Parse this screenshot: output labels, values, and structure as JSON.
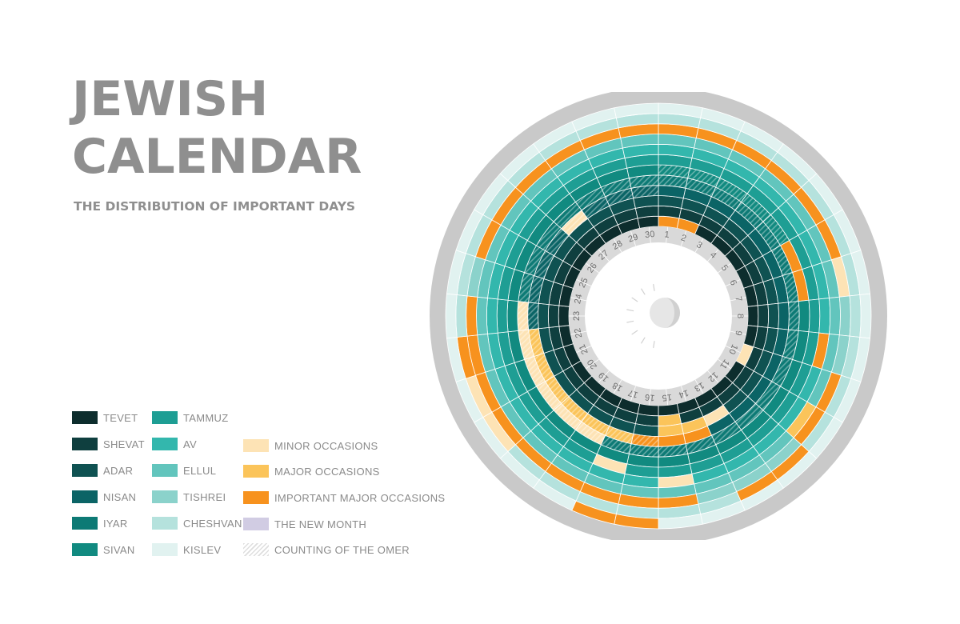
{
  "page": {
    "title_line1": "JEWISH",
    "title_line2": "CALENDAR",
    "subtitle": "THE DISTRIBUTION OF IMPORTANT DAYS"
  },
  "colors": {
    "background": "#ffffff",
    "outer_ring": "#c9c9c9",
    "day_ring": "#d9d9d9",
    "text_gray": "#8f8f8f",
    "months": {
      "TEVET": "#0d2d2d",
      "SHEVAT": "#0f3f3f",
      "ADAR": "#0f5252",
      "NISAN": "#0b6466",
      "IYAR": "#0d7a75",
      "SIVAN": "#118a80",
      "TAMMUZ": "#1e9e94",
      "AV": "#33b7ad",
      "ELLUL": "#62c5bd",
      "TISHREI": "#8bd2cb",
      "CHESHVAN": "#b5e2dd",
      "KISLEV": "#e1f2f0"
    },
    "occasions": {
      "minor": "#fde3b5",
      "major": "#fbc45a",
      "important": "#f7921e",
      "new_month": "#d1cce3"
    }
  },
  "legend": {
    "months": [
      {
        "label": "TEVET",
        "color": "#0d2d2d"
      },
      {
        "label": "SHEVAT",
        "color": "#0f3f3f"
      },
      {
        "label": "ADAR",
        "color": "#0f5252"
      },
      {
        "label": "NISAN",
        "color": "#0b6466"
      },
      {
        "label": "IYAR",
        "color": "#0d7a75"
      },
      {
        "label": "SIVAN",
        "color": "#118a80"
      },
      {
        "label": "TAMMUZ",
        "color": "#1e9e94"
      },
      {
        "label": "AV",
        "color": "#33b7ad"
      },
      {
        "label": "ELLUL",
        "color": "#62c5bd"
      },
      {
        "label": "TISHREI",
        "color": "#8bd2cb"
      },
      {
        "label": "CHESHVAN",
        "color": "#b5e2dd"
      },
      {
        "label": "KISLEV",
        "color": "#e1f2f0"
      }
    ],
    "occasions": [
      {
        "label": "MINOR OCCASIONS",
        "color": "#fde3b5"
      },
      {
        "label": "MAJOR OCCASIONS",
        "color": "#fbc45a"
      },
      {
        "label": "IMPORTANT MAJOR OCCASIONS",
        "color": "#f7921e"
      },
      {
        "label": "THE NEW MONTH",
        "color": "#d1cce3"
      },
      {
        "label": "COUNTING OF THE OMER",
        "pattern": "hatch"
      }
    ]
  },
  "chart_data": {
    "type": "heatmap",
    "form": "radial",
    "title": "JEWISH CALENDAR",
    "subtitle": "THE DISTRIBUTION OF IMPORTANT DAYS",
    "rings_inner_to_outer": [
      "TEVET",
      "SHEVAT",
      "ADAR",
      "NISAN",
      "IYAR",
      "SIVAN",
      "TAMMUZ",
      "AV",
      "ELLUL",
      "TISHREI",
      "CHESHVAN",
      "KISLEV"
    ],
    "days": [
      1,
      2,
      3,
      4,
      5,
      6,
      7,
      8,
      9,
      10,
      11,
      12,
      13,
      14,
      15,
      16,
      17,
      18,
      19,
      20,
      21,
      22,
      23,
      24,
      25,
      26,
      27,
      28,
      29,
      30
    ],
    "day_labels": [
      "1",
      "2",
      "3",
      "4",
      "5",
      "6",
      "7",
      "8",
      "9",
      "10",
      "11",
      "12",
      "13",
      "14",
      "15",
      "16",
      "17",
      "18",
      "19",
      "20",
      "21",
      "22",
      "23",
      "24",
      "25",
      "26",
      "27",
      "28",
      "29",
      "30"
    ],
    "occasions": [
      {
        "month": "TEVET",
        "day": 1,
        "type": "important"
      },
      {
        "month": "TEVET",
        "day": 2,
        "type": "important"
      },
      {
        "month": "TEVET",
        "day": 10,
        "type": "minor"
      },
      {
        "month": "SHEVAT",
        "day": 15,
        "type": "major"
      },
      {
        "month": "ADAR",
        "day": 14,
        "type": "major"
      },
      {
        "month": "ADAR",
        "day": 15,
        "type": "major"
      },
      {
        "month": "ADAR",
        "day": 13,
        "type": "minor"
      },
      {
        "month": "NISAN",
        "day": 14,
        "type": "important"
      },
      {
        "month": "NISAN",
        "day": 15,
        "type": "important"
      },
      {
        "month": "NISAN",
        "day": 16,
        "type": "important"
      },
      {
        "month": "NISAN",
        "day": 17,
        "type": "major"
      },
      {
        "month": "NISAN",
        "day": 18,
        "type": "major"
      },
      {
        "month": "NISAN",
        "day": 19,
        "type": "major"
      },
      {
        "month": "NISAN",
        "day": 20,
        "type": "major"
      },
      {
        "month": "NISAN",
        "day": 21,
        "type": "major"
      },
      {
        "month": "NISAN",
        "day": 22,
        "type": "major"
      },
      {
        "month": "NISAN",
        "day": 27,
        "type": "minor"
      },
      {
        "month": "IYAR",
        "day": 18,
        "type": "minor"
      },
      {
        "month": "IYAR",
        "day": 19,
        "type": "minor"
      },
      {
        "month": "IYAR",
        "day": 20,
        "type": "minor"
      },
      {
        "month": "IYAR",
        "day": 21,
        "type": "minor"
      },
      {
        "month": "IYAR",
        "day": 22,
        "type": "minor"
      },
      {
        "month": "IYAR",
        "day": 23,
        "type": "minor"
      },
      {
        "month": "SIVAN",
        "day": 6,
        "type": "important"
      },
      {
        "month": "SIVAN",
        "day": 7,
        "type": "important"
      },
      {
        "month": "TAMMUZ",
        "day": 17,
        "type": "minor"
      },
      {
        "month": "AV",
        "day": 9,
        "type": "important"
      },
      {
        "month": "AV",
        "day": 15,
        "type": "minor"
      },
      {
        "month": "ELLUL",
        "day": 11,
        "type": "major"
      },
      {
        "month": "TISHREI",
        "day": 1,
        "type": "important"
      },
      {
        "month": "TISHREI",
        "day": 2,
        "type": "important"
      },
      {
        "month": "TISHREI",
        "day": 3,
        "type": "important"
      },
      {
        "month": "TISHREI",
        "day": 4,
        "type": "important"
      },
      {
        "month": "TISHREI",
        "day": 5,
        "type": "important"
      },
      {
        "month": "TISHREI",
        "day": 6,
        "type": "important"
      },
      {
        "month": "TISHREI",
        "day": 7,
        "type": "minor"
      },
      {
        "month": "TISHREI",
        "day": 10,
        "type": "important"
      },
      {
        "month": "TISHREI",
        "day": 11,
        "type": "important"
      },
      {
        "month": "TISHREI",
        "day": 15,
        "type": "important"
      },
      {
        "month": "TISHREI",
        "day": 16,
        "type": "important"
      },
      {
        "month": "TISHREI",
        "day": 17,
        "type": "important"
      },
      {
        "month": "TISHREI",
        "day": 18,
        "type": "important"
      },
      {
        "month": "TISHREI",
        "day": 19,
        "type": "important"
      },
      {
        "month": "TISHREI",
        "day": 20,
        "type": "important"
      },
      {
        "month": "TISHREI",
        "day": 21,
        "type": "important"
      },
      {
        "month": "TISHREI",
        "day": 22,
        "type": "important"
      },
      {
        "month": "TISHREI",
        "day": 23,
        "type": "important"
      },
      {
        "month": "TISHREI",
        "day": 25,
        "type": "important"
      },
      {
        "month": "TISHREI",
        "day": 26,
        "type": "important"
      },
      {
        "month": "TISHREI",
        "day": 27,
        "type": "important"
      },
      {
        "month": "TISHREI",
        "day": 28,
        "type": "important"
      },
      {
        "month": "TISHREI",
        "day": 29,
        "type": "important"
      },
      {
        "month": "TISHREI",
        "day": 30,
        "type": "important"
      },
      {
        "month": "CHESHVAN",
        "day": 12,
        "type": "important"
      },
      {
        "month": "CHESHVAN",
        "day": 13,
        "type": "important"
      },
      {
        "month": "CHESHVAN",
        "day": 20,
        "type": "minor"
      },
      {
        "month": "CHESHVAN",
        "day": 21,
        "type": "minor"
      },
      {
        "month": "CHESHVAN",
        "day": 22,
        "type": "important"
      },
      {
        "month": "KISLEV",
        "day": 16,
        "type": "important"
      },
      {
        "month": "KISLEV",
        "day": 17,
        "type": "important"
      }
    ],
    "omer": [
      {
        "month": "NISAN",
        "from": 16,
        "to": 30
      },
      {
        "month": "IYAR",
        "from": 1,
        "to": 30
      },
      {
        "month": "SIVAN",
        "from": 1,
        "to": 5
      }
    ]
  }
}
